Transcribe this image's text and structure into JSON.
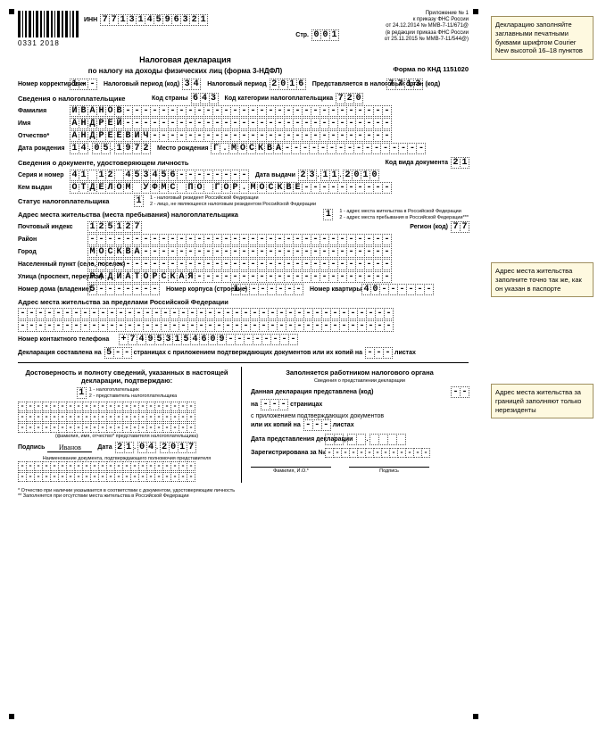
{
  "barcode_text": "0331 2018",
  "header": {
    "inn_label": "ИНН",
    "inn": "771314596321",
    "page_label": "Стр.",
    "page": "001",
    "appendix": "Приложение № 1",
    "ref1": "к приказу ФНС России",
    "ref2": "от 24.12.2014 № ММВ-7-11/671@",
    "ref3": "(в редакции приказа ФНС России",
    "ref4": "от 25.11.2015 № ММВ-7-11/544@)"
  },
  "title": "Налоговая декларация",
  "subtitle": "по налогу на доходы физических лиц (форма 3-НДФЛ)",
  "form_code_label": "Форма по КНД 1151020",
  "correction": {
    "label": "Номер корректировки",
    "value": "1--"
  },
  "tax_period_code": {
    "label": "Налоговый период (код)",
    "value": "34"
  },
  "tax_period": {
    "label": "Налоговый период",
    "value": "2016"
  },
  "tax_org": {
    "label": "Представляется в налоговый орган (код)",
    "value": "7713"
  },
  "taxpayer_info": "Сведения о налогоплательщике",
  "country": {
    "label": "Код страны",
    "value": "643"
  },
  "category": {
    "label": "Код категории налогоплательщика",
    "value": "720"
  },
  "surname": {
    "label": "Фамилия",
    "value": "ИВАНОВ"
  },
  "name": {
    "label": "Имя",
    "value": "АНДРЕЙ"
  },
  "patronymic": {
    "label": "Отчество*",
    "value": "АНДРЕЕВИЧ"
  },
  "dob": {
    "label": "Дата рождения",
    "value": "14.05.1972"
  },
  "birthplace": {
    "label": "Место рождения",
    "value": "Г.МОСКВА"
  },
  "doc_section": "Сведения о документе, удостоверяющем личность",
  "doc_type": {
    "label": "Код вида документа",
    "value": "21"
  },
  "doc_series": {
    "label": "Серия и номер",
    "value": "41 12 453456"
  },
  "doc_date": {
    "label": "Дата выдачи",
    "value": "23.11.2010"
  },
  "doc_issuer": {
    "label": "Кем выдан",
    "value": "ОТДЕЛОМ УФМС ПО ГОР.МОСКВЕ"
  },
  "status": {
    "label": "Статус налогоплательщика",
    "value": "1",
    "opt1": "1 - налоговый резидент Российской Федерации",
    "opt2": "2 - лицо, не являющееся налоговым резидентом Российской Федерации"
  },
  "addr_section": "Адрес места жительства (места пребывания) налогоплательщика",
  "addr_type": {
    "value": "1",
    "opt1": "1 - адрес места жительства в Российской Федерации",
    "opt2": "2 - адрес места пребывания в Российской Федерации***"
  },
  "postcode": {
    "label": "Почтовый индекс",
    "value": "125127"
  },
  "region": {
    "label": "Регион (код)",
    "value": "77"
  },
  "district": {
    "label": "Район",
    "value": ""
  },
  "city": {
    "label": "Город",
    "value": "МОСКВА"
  },
  "locality": {
    "label": "Населенный пункт (село, поселок)",
    "value": ""
  },
  "street": {
    "label": "Улица (проспект, переулок)",
    "value": "РАДИАТОРСКАЯ"
  },
  "house": {
    "label": "Номер дома (владение)",
    "value": "5"
  },
  "korpus": {
    "label": "Номер корпуса (строение)",
    "value": "1"
  },
  "flat": {
    "label": "Номер квартиры",
    "value": "40"
  },
  "addr_foreign": {
    "label": "Адрес места жительства за пределами Российской Федерации",
    "value": ""
  },
  "phone": {
    "label": "Номер контактного телефона",
    "value": "+74953154609"
  },
  "decl_on": {
    "label": "Декларация составлена на",
    "value": "5",
    "mid": "страницах с приложением подтверждающих документов или их копий на",
    "tail": "листах"
  },
  "confirm_block": {
    "title": "Достоверность и полноту сведений, указанных в настоящей декларации, подтверждаю:",
    "value": "1",
    "opt1": "1 - налогоплательщик",
    "opt2": "2 - представитель налогоплательщика",
    "fio_note": "(фамилия, имя, отчество* представителя налогоплательщика)",
    "sign_label": "Подпись",
    "sign_value": "Иванов",
    "date_label": "Дата",
    "date_value": "21.04.2017",
    "doc_title": "Наименование документа, подтверждающего полномочия представителя"
  },
  "inspector_block": {
    "title": "Заполняется работником налогового органа",
    "sub": "Сведения о представлении декларации",
    "presented": "Данная декларация представлена (код)",
    "on": "на",
    "pages": "страницах",
    "with_docs": "с приложением подтверждающих документов",
    "or_copies": "или их копий на",
    "sheets": "листах",
    "date_present": "Дата представления декларации",
    "reg_no": "Зарегистрирована за №",
    "fio": "Фамилия, И.О.*",
    "sign": "Подпись"
  },
  "footnotes": {
    "f1": "* Отчество при наличии указывается в соответствии с документом, удостоверяющим личность",
    "f2": "** Заполняется при отсутствии места жительства в Российской Федерации"
  },
  "notes": {
    "n1": "Декларацию заполняйте заглавными печатными буквами шрифтом Courier New высотой 16–18 пунктов",
    "n2": "Адрес места жительства заполните точно так же, как он указан в паспорте",
    "n3": "Адрес места жительства за границей заполняют только нерезиденты"
  }
}
